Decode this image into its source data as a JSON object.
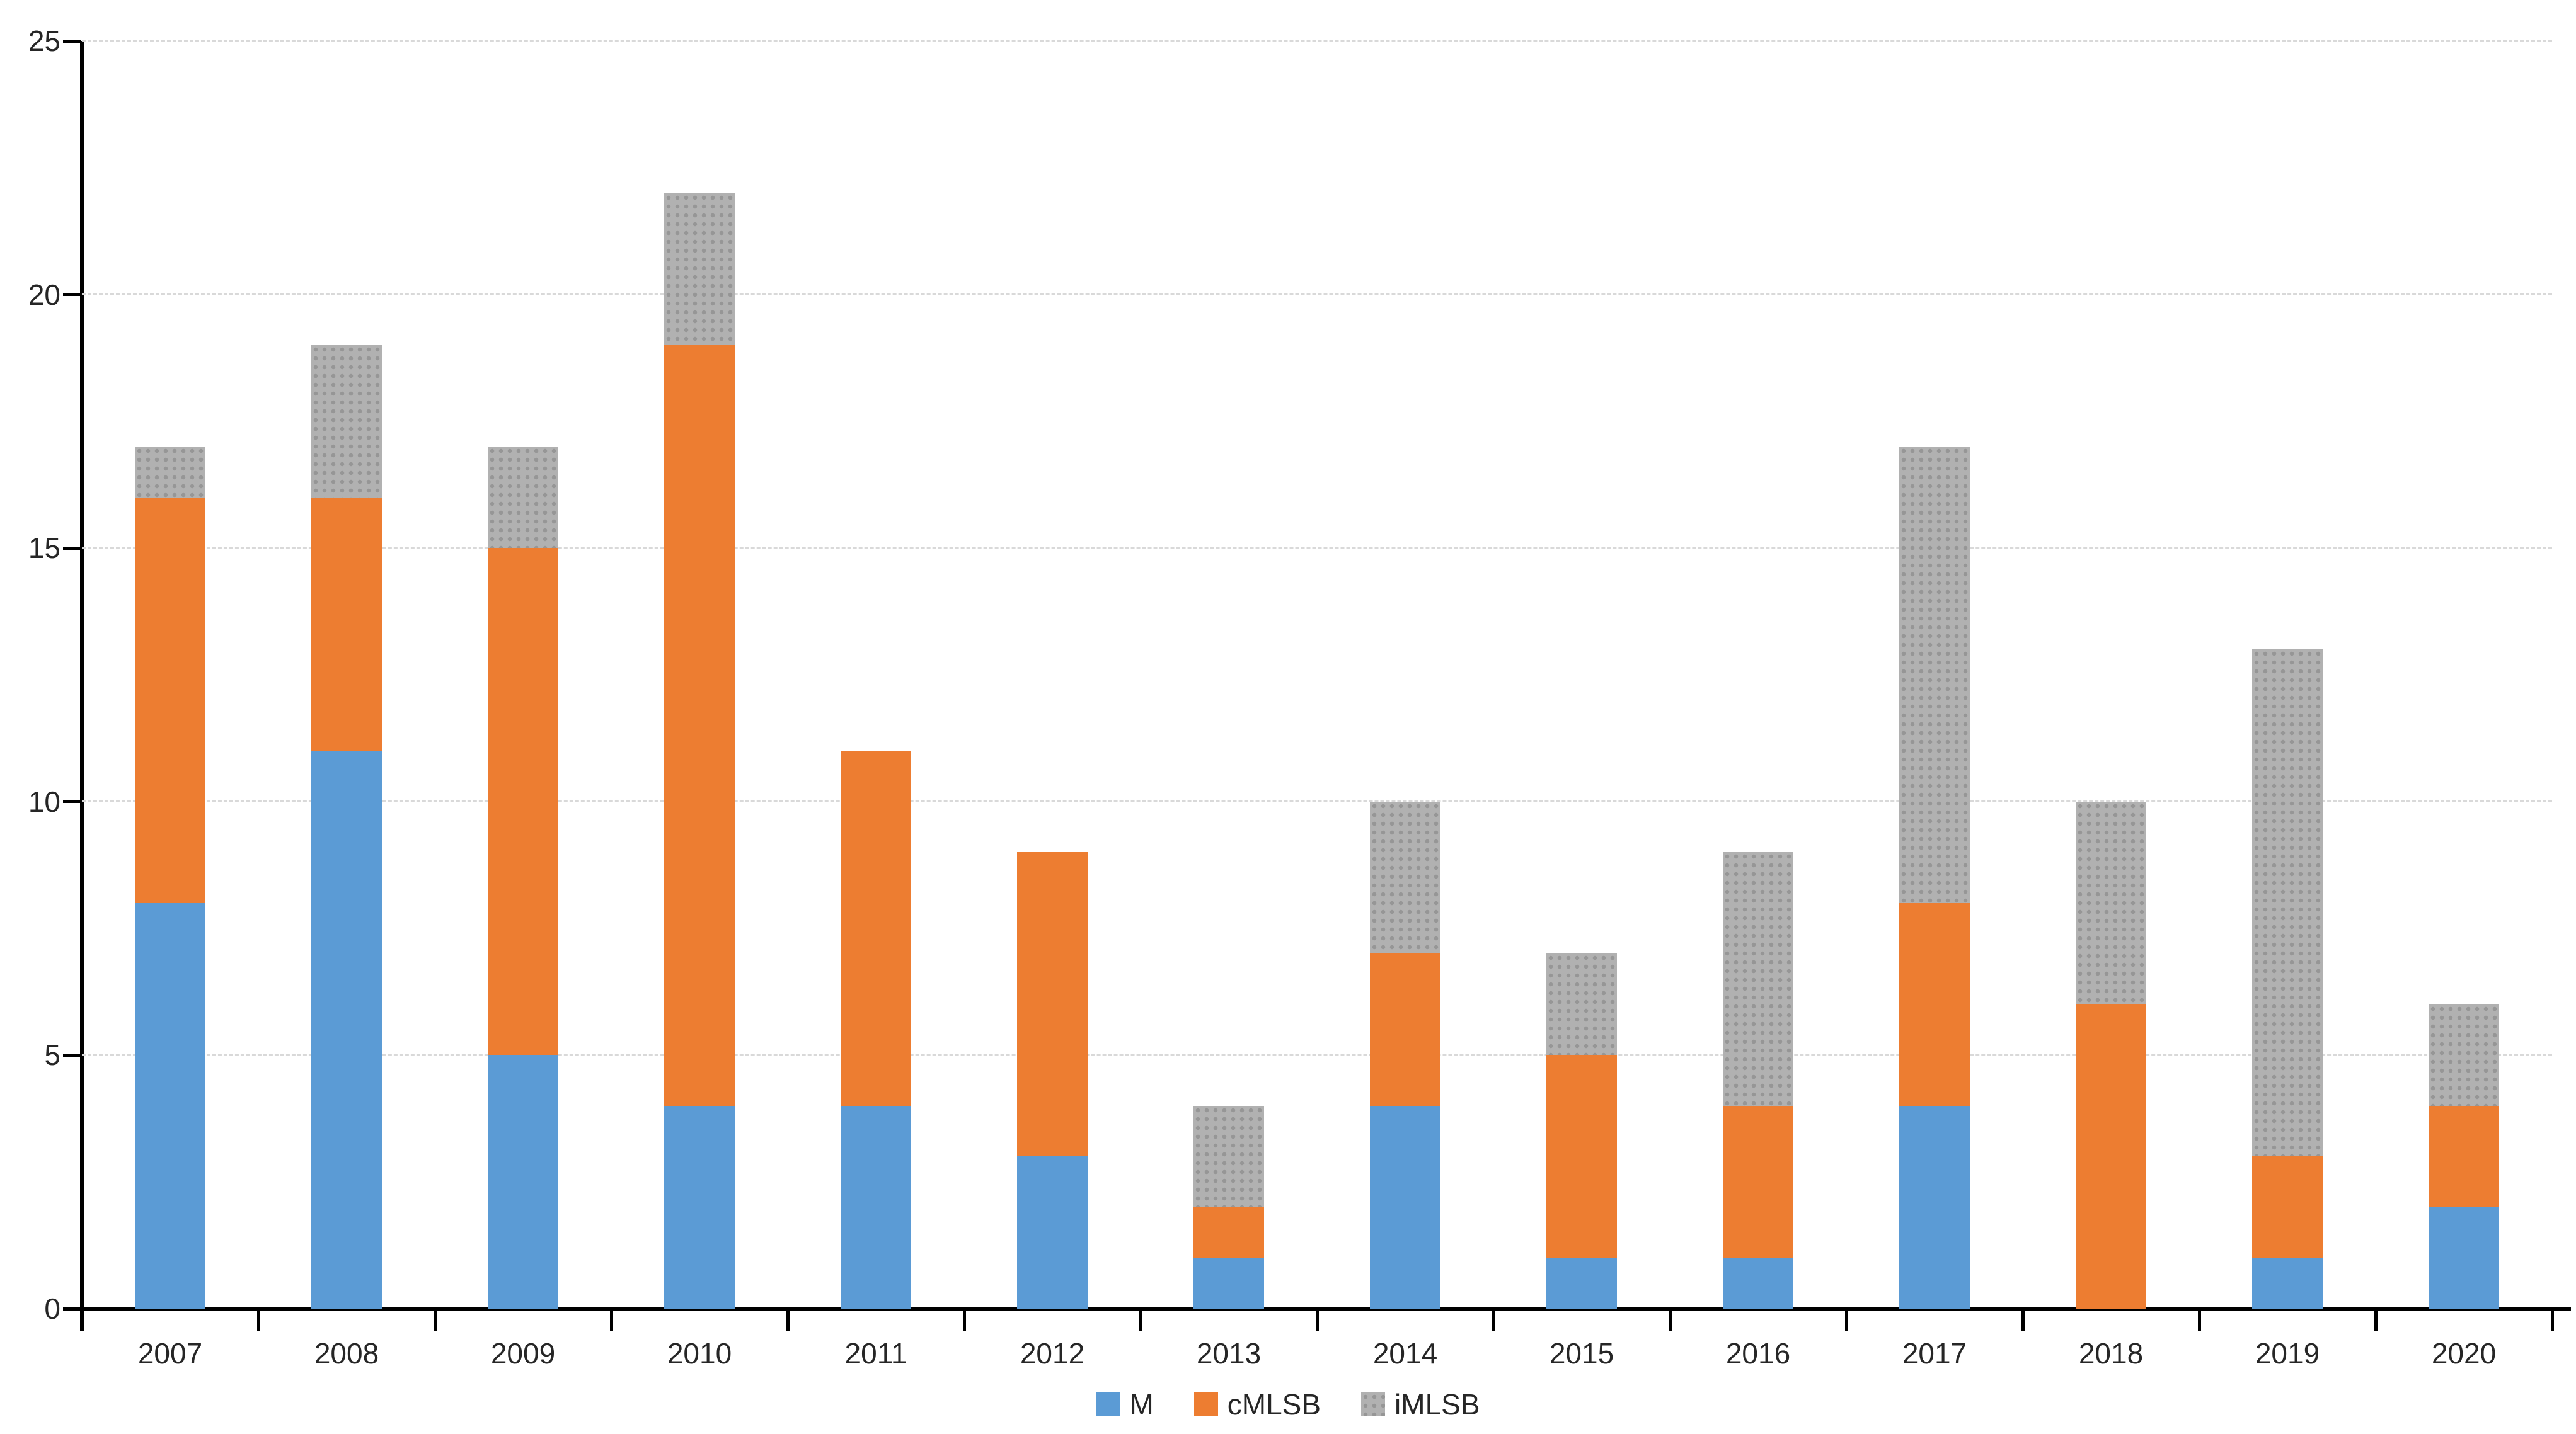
{
  "chart_data": {
    "type": "bar",
    "stacked": true,
    "title": "",
    "xlabel": "",
    "ylabel": "",
    "categories": [
      "2007",
      "2008",
      "2009",
      "2010",
      "2011",
      "2012",
      "2013",
      "2014",
      "2015",
      "2016",
      "2017",
      "2018",
      "2019",
      "2020"
    ],
    "series": [
      {
        "name": "M",
        "color": "#5B9BD5",
        "pattern": "solid",
        "values": [
          8,
          11,
          5,
          4,
          4,
          3,
          1,
          4,
          1,
          1,
          4,
          0,
          1,
          2
        ]
      },
      {
        "name": "cMLSB",
        "color": "#ED7D31",
        "pattern": "solid",
        "values": [
          8,
          5,
          10,
          15,
          7,
          6,
          1,
          3,
          4,
          3,
          4,
          6,
          2,
          2
        ]
      },
      {
        "name": "iMLSB",
        "color": "#A6A6A6",
        "pattern": "dots",
        "values": [
          1,
          3,
          2,
          3,
          0,
          0,
          2,
          3,
          2,
          5,
          9,
          4,
          10,
          2
        ]
      }
    ],
    "totals": [
      17,
      19,
      17,
      22,
      11,
      9,
      4,
      10,
      7,
      9,
      17,
      10,
      13,
      6
    ],
    "ylim": [
      0,
      25
    ],
    "yticks": [
      0,
      5,
      10,
      15,
      20,
      25
    ],
    "grid": true,
    "gridline_color": "#D9D9D9",
    "axis_color": "#000000",
    "legend_position": "bottom"
  }
}
